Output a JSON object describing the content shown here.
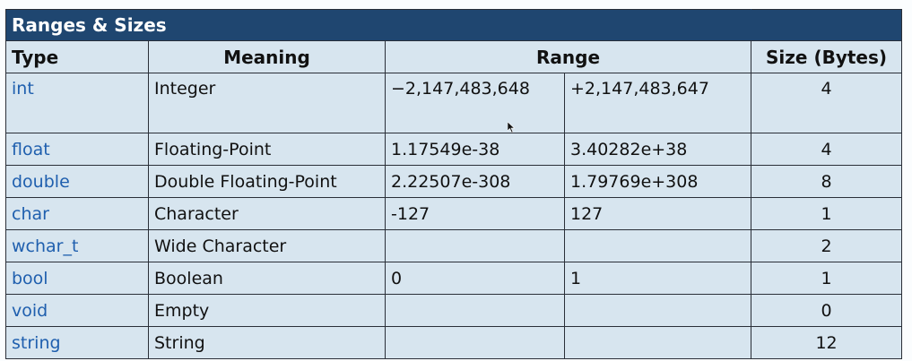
{
  "table": {
    "title": "Ranges & Sizes",
    "headers": {
      "type": "Type",
      "meaning": "Meaning",
      "range": "Range",
      "size": "Size (Bytes)"
    },
    "rows": [
      {
        "type": "int",
        "meaning": "Integer",
        "min": "−2,147,483,648",
        "max": "+2,147,483,647",
        "size": "4"
      },
      {
        "type": "float",
        "meaning": "Floating-Point",
        "min": "1.17549e-38",
        "max": "3.40282e+38",
        "size": "4"
      },
      {
        "type": "double",
        "meaning": "Double Floating-Point",
        "min": "2.22507e-308",
        "max": "1.79769e+308",
        "size": "8"
      },
      {
        "type": "char",
        "meaning": "Character",
        "min": "-127",
        "max": "127",
        "size": "1"
      },
      {
        "type": "wchar_t",
        "meaning": "Wide Character",
        "min": "",
        "max": "",
        "size": "2"
      },
      {
        "type": "bool",
        "meaning": "Boolean",
        "min": "0",
        "max": "1",
        "size": "1"
      },
      {
        "type": "void",
        "meaning": "Empty",
        "min": "",
        "max": "",
        "size": "0"
      },
      {
        "type": "string",
        "meaning": "String",
        "min": "",
        "max": "",
        "size": "12"
      }
    ]
  },
  "icons": {
    "cursor": "mouse-pointer-icon"
  },
  "colors": {
    "title_bar": "#1f4670",
    "cell_background": "#d7e5ef",
    "type_text": "#1f5fae",
    "border": "#2a2f38"
  }
}
